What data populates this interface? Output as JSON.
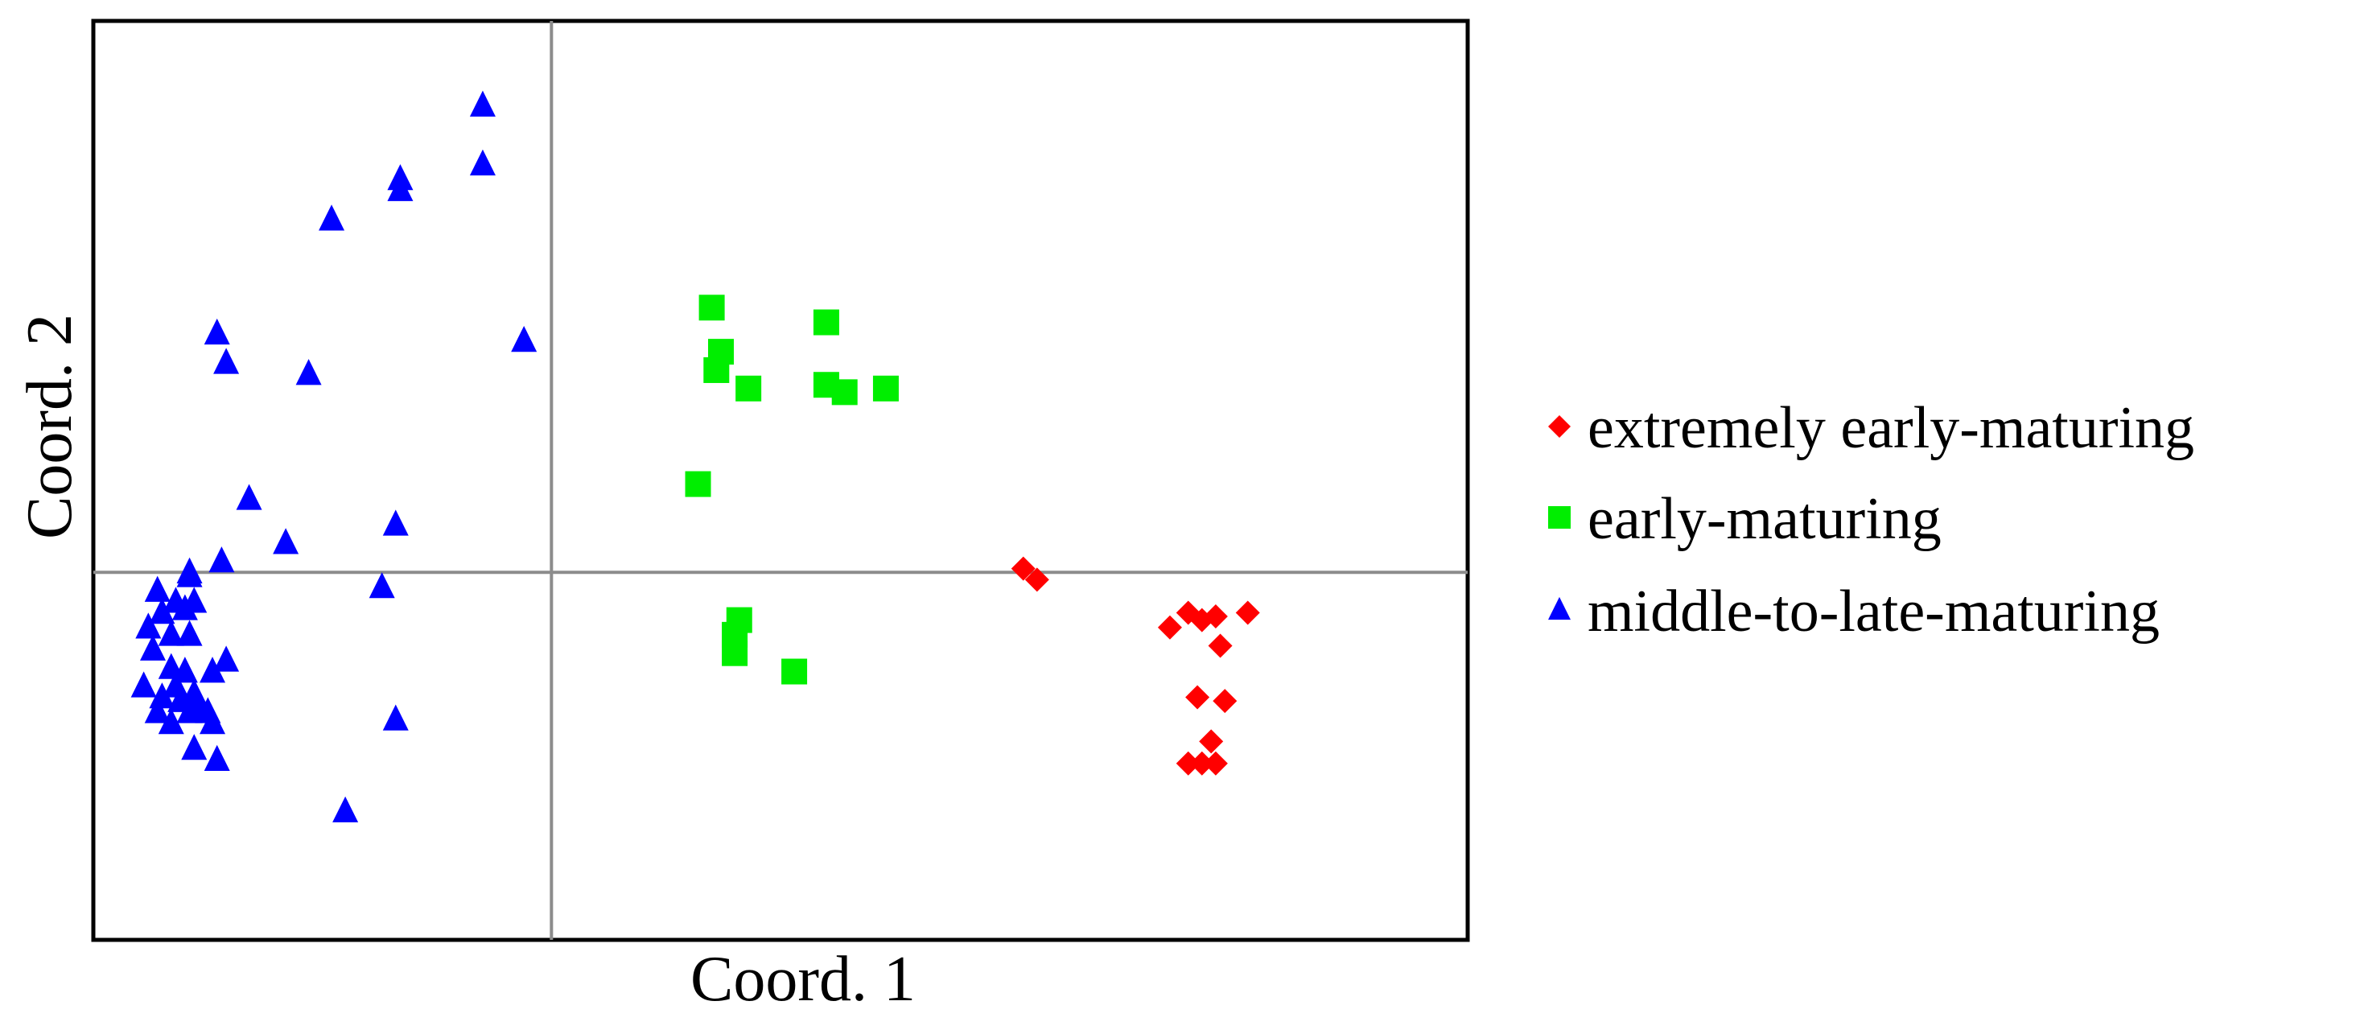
{
  "chart_data": {
    "type": "scatter",
    "title": "",
    "xlabel": "Coord. 1",
    "ylabel": "Coord. 2",
    "xlim": [
      -1.0,
      2.0
    ],
    "ylim": [
      -1.0,
      1.5
    ],
    "grid": false,
    "reference_lines": {
      "x": 0,
      "y": 0
    },
    "legend_position": "right",
    "series": [
      {
        "name": "extremely early-maturing",
        "marker": "diamond",
        "color": "#ff0000",
        "points": [
          [
            1.03,
            0.01
          ],
          [
            1.06,
            -0.02
          ],
          [
            1.35,
            -0.15
          ],
          [
            1.39,
            -0.11
          ],
          [
            1.42,
            -0.13
          ],
          [
            1.45,
            -0.12
          ],
          [
            1.52,
            -0.11
          ],
          [
            1.46,
            -0.2
          ],
          [
            1.41,
            -0.34
          ],
          [
            1.47,
            -0.35
          ],
          [
            1.44,
            -0.46
          ],
          [
            1.42,
            -0.52
          ],
          [
            1.39,
            -0.52
          ],
          [
            1.45,
            -0.52
          ]
        ]
      },
      {
        "name": "early-maturing",
        "marker": "square",
        "color": "#00ee00",
        "points": [
          [
            0.35,
            0.72
          ],
          [
            0.6,
            0.68
          ],
          [
            0.37,
            0.6
          ],
          [
            0.36,
            0.55
          ],
          [
            0.43,
            0.5
          ],
          [
            0.6,
            0.51
          ],
          [
            0.64,
            0.49
          ],
          [
            0.73,
            0.5
          ],
          [
            0.32,
            0.24
          ],
          [
            0.41,
            -0.13
          ],
          [
            0.4,
            -0.17
          ],
          [
            0.4,
            -0.22
          ],
          [
            0.53,
            -0.27
          ]
        ]
      },
      {
        "name": "middle-to-late-maturing",
        "marker": "triangle",
        "color": "#0000ff",
        "points": [
          [
            -0.15,
            1.27
          ],
          [
            -0.15,
            1.11
          ],
          [
            -0.33,
            1.07
          ],
          [
            -0.33,
            1.04
          ],
          [
            -0.48,
            0.96
          ],
          [
            -0.06,
            0.63
          ],
          [
            -0.73,
            0.65
          ],
          [
            -0.71,
            0.57
          ],
          [
            -0.53,
            0.54
          ],
          [
            -0.66,
            0.2
          ],
          [
            -0.58,
            0.08
          ],
          [
            -0.34,
            0.13
          ],
          [
            -0.37,
            -0.04
          ],
          [
            -0.72,
            0.03
          ],
          [
            -0.79,
            -0.01
          ],
          [
            -0.79,
            0.0
          ],
          [
            -0.86,
            -0.05
          ],
          [
            -0.82,
            -0.08
          ],
          [
            -0.78,
            -0.08
          ],
          [
            -0.85,
            -0.11
          ],
          [
            -0.8,
            -0.1
          ],
          [
            -0.88,
            -0.15
          ],
          [
            -0.83,
            -0.17
          ],
          [
            -0.79,
            -0.17
          ],
          [
            -0.87,
            -0.21
          ],
          [
            -0.71,
            -0.24
          ],
          [
            -0.74,
            -0.27
          ],
          [
            -0.8,
            -0.27
          ],
          [
            -0.83,
            -0.26
          ],
          [
            -0.89,
            -0.31
          ],
          [
            -0.82,
            -0.31
          ],
          [
            -0.78,
            -0.33
          ],
          [
            -0.85,
            -0.34
          ],
          [
            -0.81,
            -0.35
          ],
          [
            -0.77,
            -0.36
          ],
          [
            -0.86,
            -0.38
          ],
          [
            -0.79,
            -0.38
          ],
          [
            -0.75,
            -0.38
          ],
          [
            -0.83,
            -0.41
          ],
          [
            -0.74,
            -0.41
          ],
          [
            -0.78,
            -0.48
          ],
          [
            -0.73,
            -0.51
          ],
          [
            -0.34,
            -0.4
          ],
          [
            -0.45,
            -0.65
          ]
        ]
      }
    ]
  }
}
